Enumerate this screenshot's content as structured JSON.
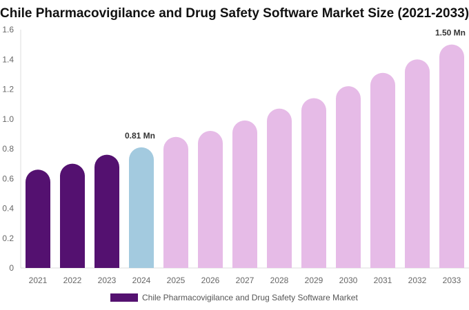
{
  "chart_data": {
    "type": "bar",
    "title": "Chile Pharmacovigilance and Drug Safety Software Market Size (2021-2033)",
    "categories": [
      "2021",
      "2022",
      "2023",
      "2024",
      "2025",
      "2026",
      "2027",
      "2028",
      "2029",
      "2030",
      "2031",
      "2032",
      "2033"
    ],
    "series": [
      {
        "name": "Chile Pharmacovigilance and Drug Safety Software Market",
        "values": [
          0.66,
          0.7,
          0.76,
          0.81,
          0.88,
          0.92,
          0.99,
          1.07,
          1.14,
          1.22,
          1.31,
          1.4,
          1.5
        ]
      }
    ],
    "data_labels": {
      "3": "0.81 Mn",
      "12": "1.50 Mn"
    },
    "ylim": [
      0,
      1.6
    ],
    "yticks": [
      0,
      0.2,
      0.4,
      0.6,
      0.8,
      1.0,
      1.2,
      1.4,
      1.6
    ],
    "ytick_labels": [
      "0",
      "0.2",
      "0.4",
      "0.6",
      "0.8",
      "1.0",
      "1.2",
      "1.4",
      "1.6"
    ],
    "xlabel": "",
    "ylabel": "",
    "grid": false,
    "legend": "bottom",
    "colors": {
      "historical": "#541170",
      "base_year": "#a3cadf",
      "forecast": "#e6bbe7"
    }
  }
}
